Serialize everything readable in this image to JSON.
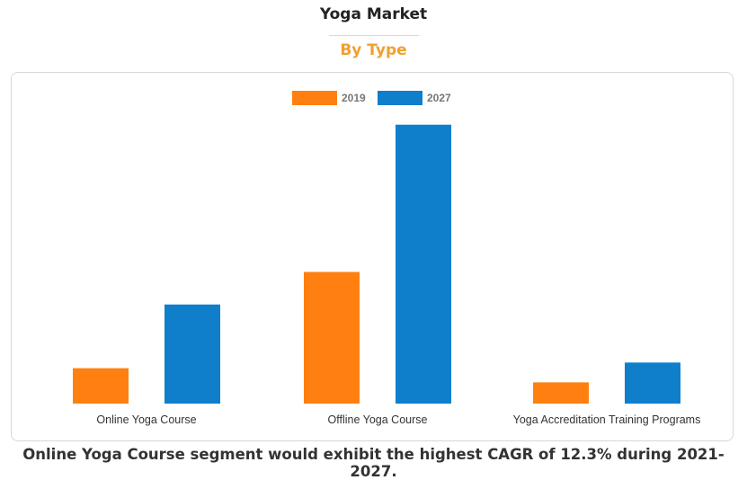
{
  "header": {
    "title": "Yoga Market",
    "subtitle": "By Type"
  },
  "colors": {
    "subtitle": "#f0a030",
    "series_2019": "#ff8011",
    "series_2027": "#0f7fcb",
    "tick_text": "#333333",
    "legend_text": "#777777"
  },
  "chart_data": {
    "type": "bar",
    "categories": [
      "Online Yoga Course",
      "Offline Yoga Course",
      "Yoga Accreditation Training Programs"
    ],
    "series": [
      {
        "name": "2019",
        "values": [
          2.5,
          9.3,
          1.5
        ]
      },
      {
        "name": "2027",
        "values": [
          7.0,
          19.7,
          2.9
        ]
      }
    ],
    "title": "Yoga Market",
    "subtitle": "By Type",
    "xlabel": "",
    "ylabel": "",
    "ylim": [
      0,
      20
    ],
    "grid": false,
    "legend_position": "top-center"
  },
  "footer": {
    "note": "Online Yoga Course segment would exhibit the highest CAGR of 12.3% during 2021-2027."
  }
}
